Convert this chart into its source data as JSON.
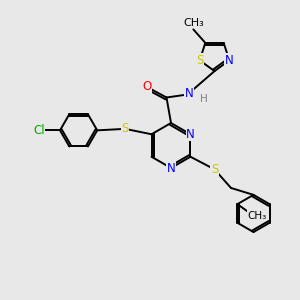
{
  "bg_color": "#e8e8e8",
  "colors": {
    "N": "#0000ff",
    "S": "#c8c800",
    "O": "#ff0000",
    "Cl": "#00aa00",
    "C": "#000000",
    "H": "#808080"
  },
  "line_width": 1.4,
  "font_size": 8.5,
  "figsize": [
    3.0,
    3.0
  ],
  "dpi": 100
}
